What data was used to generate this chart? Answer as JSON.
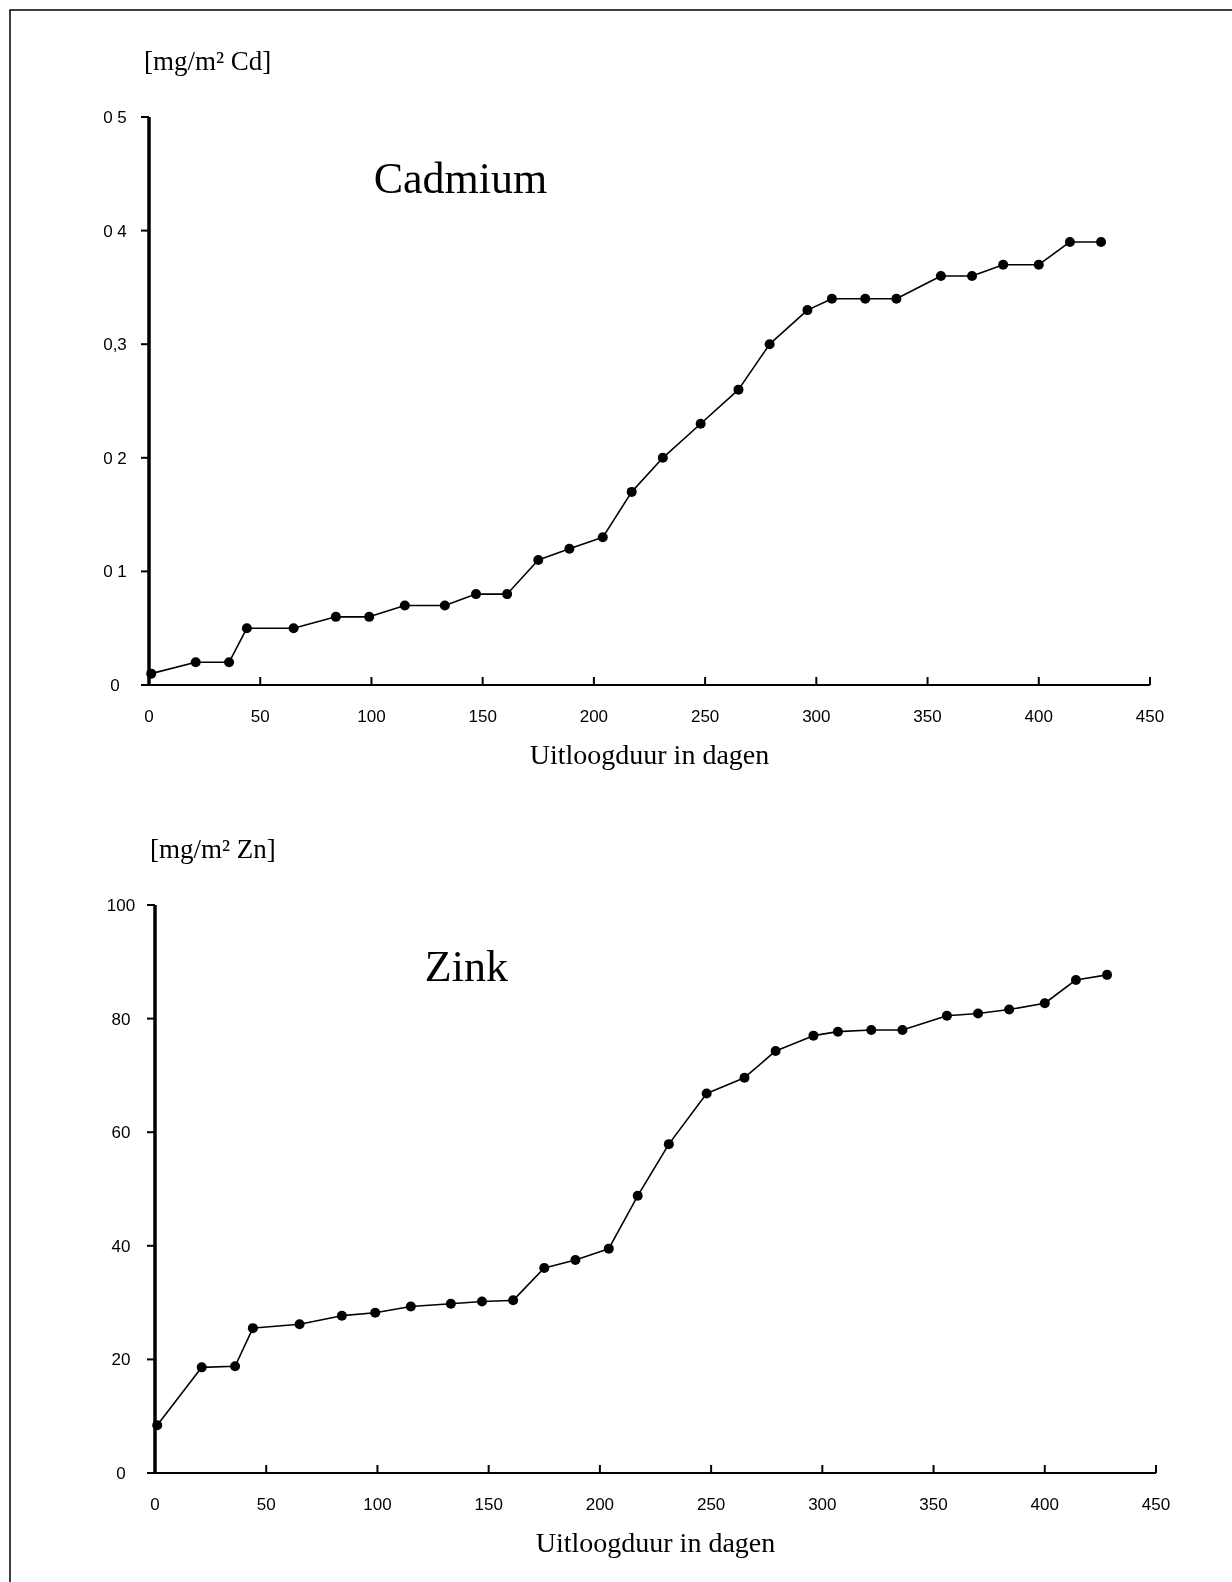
{
  "chart_data": [
    {
      "type": "line",
      "title": "Cadmium",
      "ylabel": "[mg/m² Cd]",
      "xlabel": "Uitloogduur in dagen",
      "marker": "circle",
      "line_style": "solid",
      "x": [
        1,
        21,
        36,
        44,
        65,
        84,
        99,
        115,
        133,
        147,
        161,
        175,
        189,
        204,
        217,
        231,
        248,
        265,
        279,
        296,
        307,
        322,
        336,
        356,
        370,
        384,
        400,
        414,
        428
      ],
      "series": [
        {
          "color": "#000000",
          "values": [
            0.01,
            0.02,
            0.02,
            0.05,
            0.05,
            0.06,
            0.06,
            0.07,
            0.07,
            0.08,
            0.08,
            0.11,
            0.12,
            0.13,
            0.17,
            0.2,
            0.23,
            0.26,
            0.3,
            0.33,
            0.34,
            0.34,
            0.34,
            0.36,
            0.36,
            0.37,
            0.37,
            0.39,
            0.39
          ]
        }
      ],
      "xlim": [
        0,
        450
      ],
      "xticks": [
        0,
        50,
        100,
        150,
        200,
        250,
        300,
        350,
        400,
        450
      ],
      "ylim": [
        0,
        0.5
      ],
      "yticks": [
        {
          "value": 0,
          "label": "0"
        },
        {
          "value": 0.1,
          "label": "0 1"
        },
        {
          "value": 0.2,
          "label": "0 2"
        },
        {
          "value": 0.3,
          "label": "0,3"
        },
        {
          "value": 0.4,
          "label": "0 4"
        },
        {
          "value": 0.5,
          "label": "0 5"
        }
      ]
    },
    {
      "type": "line",
      "title": "Zink",
      "ylabel": "[mg/m² Zn]",
      "xlabel": "Uitloogduur in dagen",
      "marker": "circle",
      "line_style": "solid",
      "x": [
        1,
        21,
        36,
        44,
        65,
        84,
        99,
        115,
        133,
        147,
        161,
        175,
        189,
        204,
        217,
        231,
        248,
        265,
        279,
        296,
        307,
        322,
        336,
        356,
        370,
        384,
        400,
        414,
        428
      ],
      "series": [
        {
          "color": "#000000",
          "values": [
            8.4,
            18.6,
            18.8,
            25.5,
            26.2,
            27.7,
            28.2,
            29.3,
            29.8,
            30.2,
            30.4,
            36.1,
            37.5,
            39.5,
            48.8,
            57.9,
            66.8,
            69.6,
            74.3,
            77.0,
            77.7,
            78.0,
            78.0,
            80.5,
            80.9,
            81.6,
            82.7,
            86.8,
            87.7
          ]
        }
      ],
      "xlim": [
        0,
        450
      ],
      "xticks": [
        0,
        50,
        100,
        150,
        200,
        250,
        300,
        350,
        400,
        450
      ],
      "ylim": [
        0,
        100
      ],
      "yticks": [
        0,
        20,
        40,
        60,
        80,
        100
      ]
    }
  ]
}
